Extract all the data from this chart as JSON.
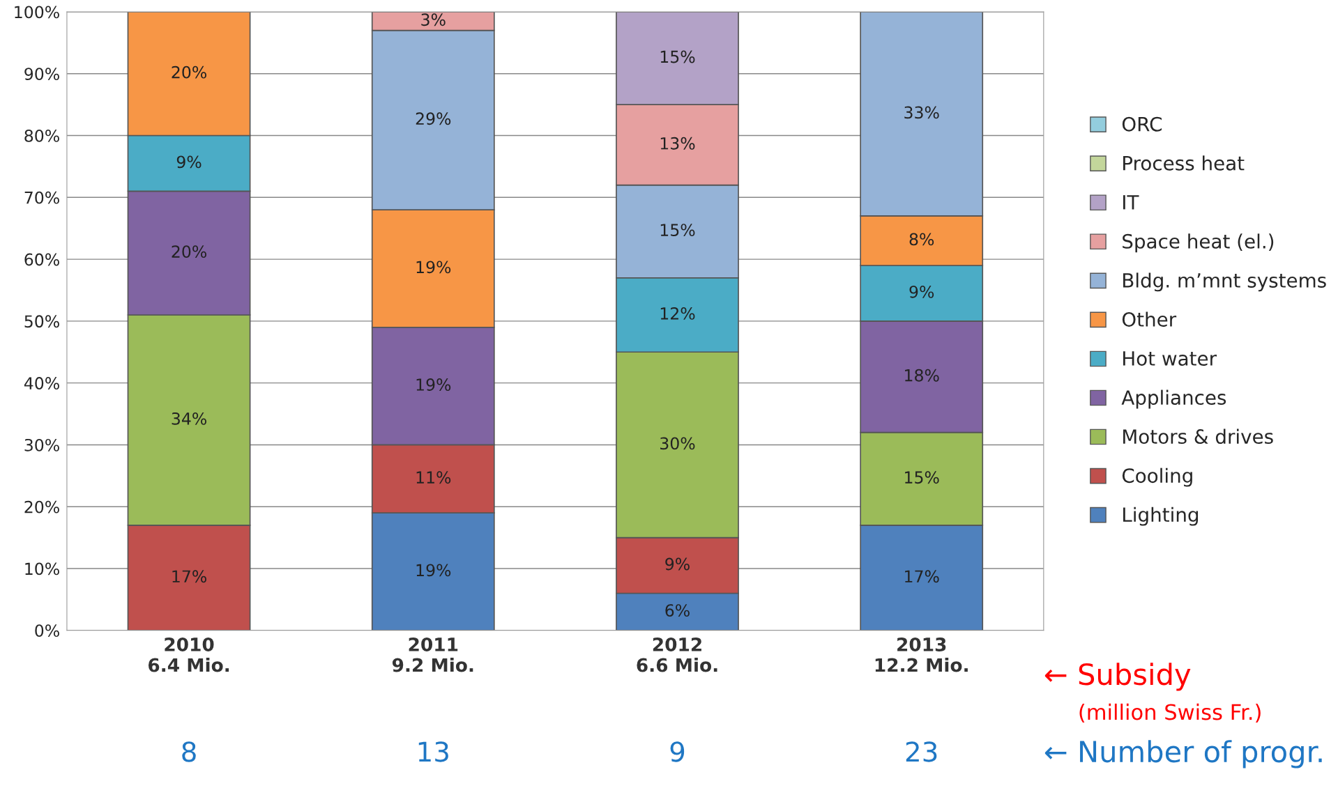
{
  "chart_data": {
    "type": "bar",
    "stacked": true,
    "categories": [
      "2010\n6.4 Mio.",
      "2011\n9.2 Mio.",
      "2012\n6.6 Mio.",
      "2013\n12.2 Mio."
    ],
    "series": [
      {
        "name": "Lighting",
        "color": "#4f81bd",
        "values": [
          null,
          19,
          6,
          17
        ],
        "value_labels": [
          null,
          "19%",
          "6%",
          "17%"
        ]
      },
      {
        "name": "Cooling",
        "color": "#c0504d",
        "values": [
          17,
          11,
          9,
          null
        ],
        "value_labels": [
          "17%",
          "11%",
          "9%",
          null
        ]
      },
      {
        "name": "Motors & drives",
        "color": "#9bbb59",
        "values": [
          34,
          null,
          30,
          15
        ],
        "value_labels": [
          "34%",
          null,
          "30%",
          "15%"
        ]
      },
      {
        "name": "Appliances",
        "color": "#8064a2",
        "values": [
          20,
          19,
          null,
          18
        ],
        "value_labels": [
          "20%",
          "19%",
          null,
          "18%"
        ]
      },
      {
        "name": "Hot water",
        "color": "#4bacc6",
        "values": [
          9,
          null,
          12,
          9
        ],
        "value_labels": [
          "9%",
          null,
          "12%",
          "9%"
        ]
      },
      {
        "name": "Other",
        "color": "#f79646",
        "values": [
          20,
          19,
          null,
          8
        ],
        "value_labels": [
          "20%",
          "19%",
          null,
          "8%"
        ]
      },
      {
        "name": "Bldg. m’mnt systems",
        "color": "#95b3d7",
        "values": [
          null,
          29,
          15,
          33
        ],
        "value_labels": [
          null,
          "29%",
          "15%",
          "33%"
        ]
      },
      {
        "name": "Space heat (el.)",
        "color": "#e6a0a0",
        "values": [
          null,
          3,
          13,
          null
        ],
        "value_labels": [
          null,
          "3%",
          "13%",
          null
        ]
      },
      {
        "name": "IT",
        "color": "#b3a2c7",
        "values": [
          null,
          null,
          15,
          null
        ],
        "value_labels": [
          null,
          null,
          "15%",
          null
        ]
      },
      {
        "name": "Process heat",
        "color": "#c3d69b",
        "values": [
          null,
          null,
          null,
          null
        ]
      },
      {
        "name": "ORC",
        "color": "#93cddd",
        "values": [
          null,
          null,
          null,
          null
        ]
      }
    ],
    "ylim": [
      0,
      100
    ],
    "yticks": [
      {
        "value": 0,
        "label": "0%"
      },
      {
        "value": 10,
        "label": "10%"
      },
      {
        "value": 20,
        "label": "20%"
      },
      {
        "value": 30,
        "label": "30%"
      },
      {
        "value": 40,
        "label": "40%"
      },
      {
        "value": 50,
        "label": "50%"
      },
      {
        "value": 60,
        "label": "60%"
      },
      {
        "value": 70,
        "label": "70%"
      },
      {
        "value": 80,
        "label": "80%"
      },
      {
        "value": 90,
        "label": "90%"
      },
      {
        "value": 100,
        "label": "100%"
      }
    ],
    "grid": "y",
    "legend": "right",
    "annotations": [
      "8",
      "13",
      "9",
      "23",
      "← Subsidy",
      "(million Swiss Fr.)",
      "← Number of progr."
    ]
  }
}
